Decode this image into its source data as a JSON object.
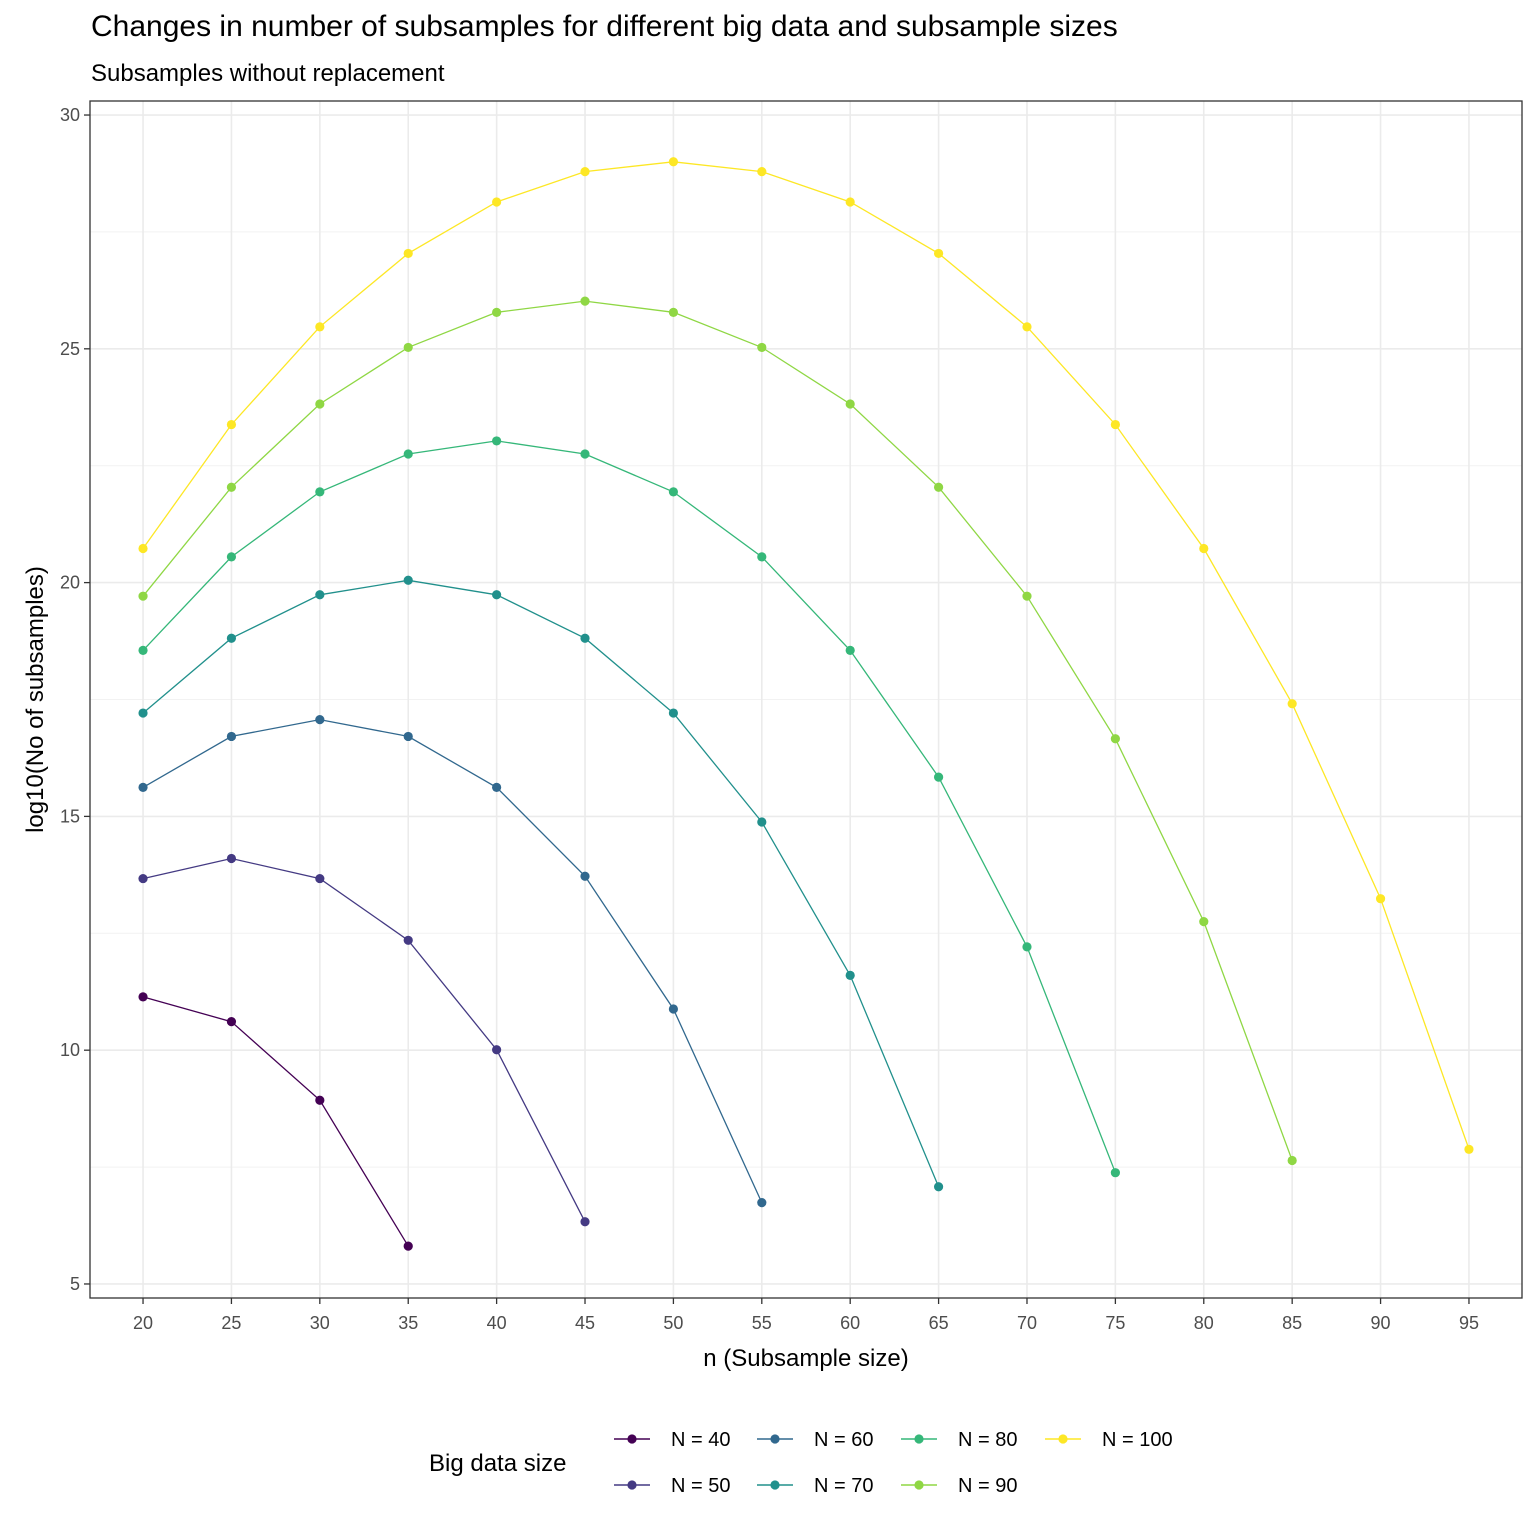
{
  "chart_data": {
    "type": "line",
    "title": "Changes in number of subsamples for different big data and subsample sizes",
    "subtitle": "Subsamples without replacement",
    "xlabel": "n (Subsample size)",
    "ylabel": "log10(No of subsamples)",
    "xlim": [
      17,
      98
    ],
    "ylim": [
      4.7,
      30.3
    ],
    "x_ticks": [
      20,
      25,
      30,
      35,
      40,
      45,
      50,
      55,
      60,
      65,
      70,
      75,
      80,
      85,
      90,
      95
    ],
    "y_ticks": [
      5,
      10,
      15,
      20,
      25,
      30
    ],
    "grid": true,
    "legend_title": "Big data size",
    "legend_position": "bottom",
    "series": [
      {
        "name": "N = 40",
        "color": "#440154",
        "x": [
          20,
          25,
          30,
          35
        ],
        "y": [
          11.14,
          10.61,
          8.93,
          5.81
        ]
      },
      {
        "name": "N = 50",
        "color": "#443A83",
        "x": [
          20,
          25,
          30,
          35,
          40,
          45
        ],
        "y": [
          13.67,
          14.1,
          13.67,
          12.35,
          10.01,
          6.33
        ]
      },
      {
        "name": "N = 60",
        "color": "#31688E",
        "x": [
          20,
          25,
          30,
          35,
          40,
          45,
          50,
          55
        ],
        "y": [
          15.62,
          16.71,
          17.07,
          16.71,
          15.62,
          13.72,
          10.88,
          6.74
        ]
      },
      {
        "name": "N = 70",
        "color": "#21908C",
        "x": [
          20,
          25,
          30,
          35,
          40,
          45,
          50,
          55,
          60,
          65
        ],
        "y": [
          17.21,
          18.81,
          19.74,
          20.05,
          19.74,
          18.81,
          17.21,
          14.88,
          11.6,
          7.08
        ]
      },
      {
        "name": "N = 80",
        "color": "#35B779",
        "x": [
          20,
          25,
          30,
          35,
          40,
          45,
          50,
          55,
          60,
          65,
          70,
          75
        ],
        "y": [
          18.55,
          20.55,
          21.94,
          22.75,
          23.03,
          22.75,
          21.94,
          20.55,
          18.55,
          15.84,
          12.21,
          7.38
        ]
      },
      {
        "name": "N = 90",
        "color": "#8FD744",
        "x": [
          20,
          25,
          30,
          35,
          40,
          45,
          50,
          55,
          60,
          65,
          70,
          75,
          80,
          85
        ],
        "y": [
          19.71,
          22.04,
          23.82,
          25.03,
          25.78,
          26.02,
          25.78,
          25.03,
          23.82,
          22.04,
          19.71,
          16.66,
          12.75,
          7.64
        ]
      },
      {
        "name": "N = 100",
        "color": "#FDE725",
        "x": [
          20,
          25,
          30,
          35,
          40,
          45,
          50,
          55,
          60,
          65,
          70,
          75,
          80,
          85,
          90,
          95
        ],
        "y": [
          20.73,
          23.38,
          25.47,
          27.04,
          28.14,
          28.79,
          29.0,
          28.79,
          28.14,
          27.04,
          25.47,
          23.38,
          20.73,
          17.41,
          13.24,
          7.88
        ]
      }
    ]
  }
}
